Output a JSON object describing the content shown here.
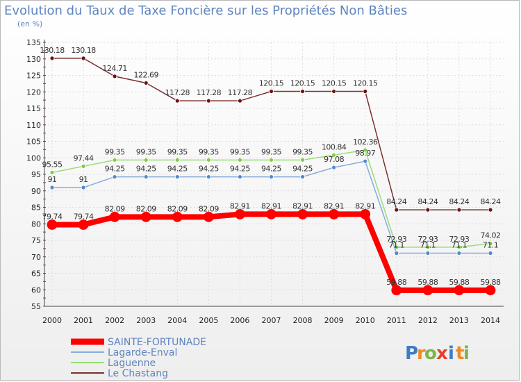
{
  "title": "Evolution du Taux de Taxe Foncière sur les Propriétés Non Bâties",
  "subtitle": "(en %)",
  "brand": {
    "letters": [
      "P",
      "r",
      "o",
      "x",
      "i",
      "t",
      "i"
    ],
    "colors": [
      "#3c7cc4",
      "#f08a24",
      "#7ab648",
      "#e5412b",
      "#3c7cc4",
      "#f08a24",
      "#7ab648"
    ]
  },
  "chart_data": {
    "type": "line",
    "title": "Evolution du Taux de Taxe Foncière sur les Propriétés Non Bâties",
    "ylabel": "(en %)",
    "ylim": [
      55,
      135
    ],
    "yticks": [
      55,
      60,
      65,
      70,
      75,
      80,
      85,
      90,
      95,
      100,
      105,
      110,
      115,
      120,
      125,
      130,
      135
    ],
    "categories": [
      "2000",
      "2001",
      "2002",
      "2003",
      "2004",
      "2005",
      "2006",
      "2007",
      "2008",
      "2009",
      "2010",
      "2011",
      "2012",
      "2013",
      "2014"
    ],
    "legend_position": "bottom-left",
    "series": [
      {
        "name": "Le Chastang",
        "color": "#7a3030",
        "markerColor": "#6b1414",
        "width": 1.5,
        "marker": 3,
        "values": [
          130.18,
          130.18,
          124.71,
          122.69,
          117.28,
          117.28,
          117.28,
          120.15,
          120.15,
          120.15,
          120.15,
          84.24,
          84.24,
          84.24,
          84.24
        ],
        "labels": [
          "130.18",
          "130.18",
          "124.71",
          "122.69",
          "117.28",
          "117.28",
          "117.28",
          "120.15",
          "120.15",
          "120.15",
          "120.15",
          "84.24",
          "84.24",
          "84.24",
          "84.24"
        ]
      },
      {
        "name": "Laguenne",
        "color": "#99dd77",
        "markerColor": "#7ccc44",
        "width": 1.5,
        "marker": 3,
        "values": [
          95.55,
          97.44,
          99.35,
          99.35,
          99.35,
          99.35,
          99.35,
          99.35,
          99.35,
          100.84,
          102.36,
          72.93,
          72.93,
          72.93,
          74.02
        ],
        "labels": [
          "95.55",
          "97.44",
          "99.35",
          "99.35",
          "99.35",
          "99.35",
          "99.35",
          "99.35",
          "99.35",
          "100.84",
          "102.36",
          "72.93",
          "72.93",
          "72.93",
          "74.02"
        ]
      },
      {
        "name": "Lagarde-Enval",
        "color": "#88aadd",
        "markerColor": "#4f8ac9",
        "width": 1.5,
        "marker": 3,
        "values": [
          91,
          91,
          94.25,
          94.25,
          94.25,
          94.25,
          94.25,
          94.25,
          94.25,
          97.08,
          98.97,
          71.1,
          71.1,
          71.1,
          71.1
        ],
        "labels": [
          "91",
          "91",
          "94.25",
          "94.25",
          "94.25",
          "94.25",
          "94.25",
          "94.25",
          "94.25",
          "97.08",
          "98.97",
          "71.1",
          "71.1",
          "71.1",
          "71.1"
        ]
      },
      {
        "name": "SAINTE-FORTUNADE",
        "color": "#ff0000",
        "markerColor": "#ff0000",
        "width": 8,
        "marker": 7,
        "values": [
          79.74,
          79.74,
          82.09,
          82.09,
          82.09,
          82.09,
          82.91,
          82.91,
          82.91,
          82.91,
          82.91,
          59.88,
          59.88,
          59.88,
          59.88
        ],
        "labels": [
          "79.74",
          "79.74",
          "82.09",
          "82.09",
          "82.09",
          "82.09",
          "82.91",
          "82.91",
          "82.91",
          "82.91",
          "82.91",
          "59.88",
          "59.88",
          "59.88",
          "59.88"
        ]
      }
    ],
    "legend": [
      {
        "name": "SAINTE-FORTUNADE",
        "color": "#ff0000"
      },
      {
        "name": "Lagarde-Enval",
        "color": "#88aadd"
      },
      {
        "name": "Laguenne",
        "color": "#99dd77"
      },
      {
        "name": "Le Chastang",
        "color": "#7a3030"
      }
    ]
  }
}
